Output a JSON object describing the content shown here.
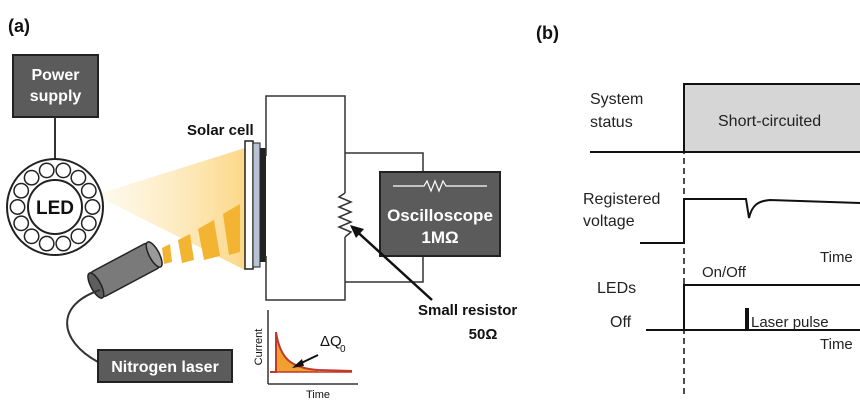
{
  "panel_a": {
    "label": "(a)",
    "power_supply": [
      "Power",
      "supply"
    ],
    "led": "LED",
    "solar_cell": "Solar cell",
    "oscilloscope": [
      "Oscilloscope",
      "1MΩ"
    ],
    "small_resistor": [
      "Small resistor",
      "50Ω"
    ],
    "nitrogen_laser": "Nitrogen laser",
    "inset": {
      "ylabel": "Current",
      "xlabel": "Time",
      "annotation": "ΔQ",
      "annotation_sub": "0"
    }
  },
  "panel_b": {
    "label": "(b)",
    "system_status": [
      "System",
      "status"
    ],
    "short_circuited": "Short-circuited",
    "registered_voltage": [
      "Registered",
      "voltage"
    ],
    "time_label_1": "Time",
    "leds": "LEDs",
    "on_off": "On/Off",
    "off": "Off",
    "laser_pulse": "Laser pulse",
    "time_label_2": "Time"
  },
  "colors": {
    "dark_box": "#5b5b5b",
    "light_box": "#d6d6d6",
    "beam": "#f2b431",
    "inset_curve": "#c0392b",
    "inset_fill": "#f0a030"
  }
}
